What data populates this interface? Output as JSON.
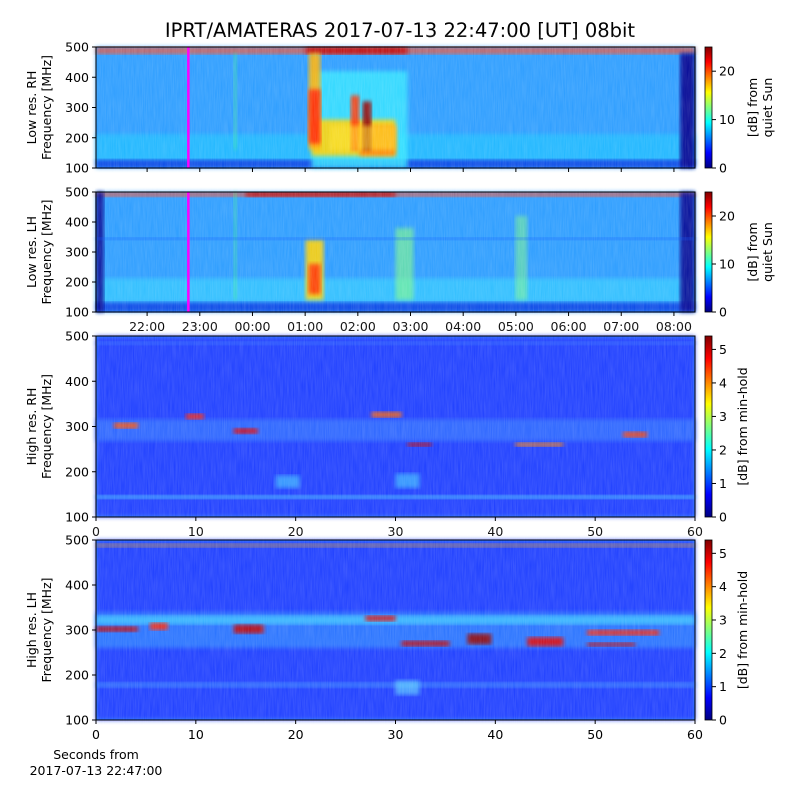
{
  "title": "IPRT/AMATERAS 2017-07-13 22:47:00 [UT]   08bit",
  "chart_data": [
    {
      "type": "spectrogram",
      "colormap": "jet",
      "ylabel": [
        "Low res. RH",
        "Frequency [MHz]"
      ],
      "ylim": [
        100,
        500
      ],
      "yticks": [
        100,
        200,
        300,
        400,
        500
      ],
      "xlim": [
        0.03,
        11.4
      ],
      "marker": 1.783,
      "marker_color": "#ff00ff",
      "colorbar": {
        "label": [
          "[dB] from",
          "quiet Sun"
        ],
        "lim": [
          0,
          25
        ],
        "ticks": [
          0,
          10,
          20
        ]
      }
    },
    {
      "type": "spectrogram",
      "colormap": "jet",
      "ylabel": [
        "Low res. LH",
        "Frequency [MHz]"
      ],
      "ylim": [
        100,
        500
      ],
      "yticks": [
        100,
        200,
        300,
        400,
        500
      ],
      "xlim": [
        0.03,
        11.4
      ],
      "marker": 1.783,
      "marker_color": "#ff00ff",
      "xticks": [
        {
          "value": 1,
          "label": "22:00"
        },
        {
          "value": 2,
          "label": "23:00"
        },
        {
          "value": 3,
          "label": "00:00"
        },
        {
          "value": 4,
          "label": "01:00"
        },
        {
          "value": 5,
          "label": "02:00"
        },
        {
          "value": 6,
          "label": "03:00"
        },
        {
          "value": 7,
          "label": "04:00"
        },
        {
          "value": 8,
          "label": "05:00"
        },
        {
          "value": 9,
          "label": "06:00"
        },
        {
          "value": 10,
          "label": "07:00"
        },
        {
          "value": 11,
          "label": "08:00"
        }
      ],
      "colorbar": {
        "label": [
          "[dB] from",
          "quiet Sun"
        ],
        "lim": [
          0,
          25
        ],
        "ticks": [
          0,
          10,
          20
        ]
      }
    },
    {
      "type": "spectrogram",
      "colormap": "jet",
      "ylabel": [
        "High res. RH",
        "Frequency [MHz]"
      ],
      "ylim": [
        100,
        500
      ],
      "yticks": [
        100,
        200,
        300,
        400,
        500
      ],
      "xlim": [
        0,
        60
      ],
      "xticks": [
        0,
        10,
        20,
        30,
        40,
        50,
        60
      ],
      "colorbar": {
        "label": [
          "[dB] from min-hold"
        ],
        "lim": [
          0,
          5.4
        ],
        "ticks": [
          0,
          1,
          2,
          3,
          4,
          5
        ]
      }
    },
    {
      "type": "spectrogram",
      "colormap": "jet",
      "ylabel": [
        "High res. LH",
        "Frequency [MHz]"
      ],
      "ylim": [
        100,
        500
      ],
      "yticks": [
        100,
        200,
        300,
        400,
        500
      ],
      "xlim": [
        0,
        60
      ],
      "xticks": [
        0,
        10,
        20,
        30,
        40,
        50,
        60
      ],
      "xlabel": [
        "Seconds from",
        "2017-07-13 22:47:00"
      ],
      "colorbar": {
        "label": [
          "[dB] from min-hold"
        ],
        "lim": [
          0,
          5.4
        ],
        "ticks": [
          0,
          1,
          2,
          3,
          4,
          5
        ]
      }
    }
  ]
}
